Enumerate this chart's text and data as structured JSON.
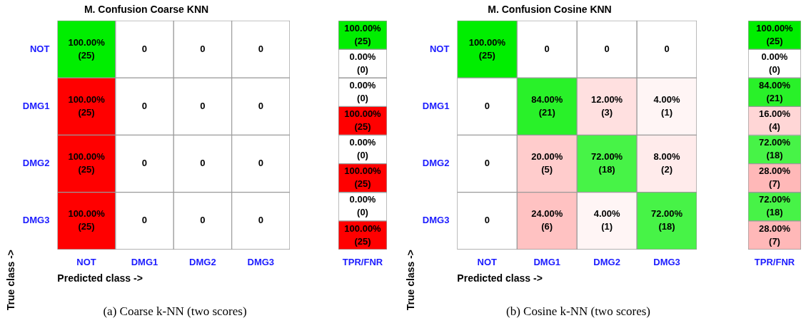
{
  "chart_data": [
    {
      "type": "heatmap",
      "title": "M. Confusion Coarse KNN",
      "xlabel": "Predicted class ->",
      "ylabel": "True class ->",
      "categories": [
        "NOT",
        "DMG1",
        "DMG2",
        "DMG3"
      ],
      "y_categories": [
        "NOT",
        "DMG1",
        "DMG2",
        "DMG3"
      ],
      "cells": [
        [
          100,
          0,
          0,
          0
        ],
        [
          100,
          0,
          0,
          0
        ],
        [
          100,
          0,
          0,
          0
        ],
        [
          100,
          0,
          0,
          0
        ]
      ],
      "cell_labels": [
        [
          "100.00%",
          "0",
          "0",
          "0"
        ],
        [
          "100.00%",
          "0",
          "0",
          "0"
        ],
        [
          "100.00%",
          "0",
          "0",
          "0"
        ],
        [
          "100.00%",
          "0",
          "0",
          "0"
        ]
      ],
      "colors": [
        [
          "#00ee00",
          "#ff0000",
          "#ff0000",
          "#ff0000"
        ],
        [
          "#ff0000",
          "#00ee00",
          "#ff0000",
          "#ff0000"
        ],
        [
          "#ff0000",
          "#ff0000",
          "#00ee00",
          "#ff0000"
        ],
        [
          "#ff0000",
          "#ff0000",
          "#ff0000",
          "#00ee00"
        ]
      ],
      "annotations": [
        "(25)",
        "(25)",
        "(25)",
        "(25)",
        "(a) Coarse k-NN (two scores)"
      ]
    },
    {
      "type": "heatmap",
      "categories": [
        "TPR/FNR"
      ],
      "y_categories": [
        null,
        null,
        null,
        null,
        null,
        null,
        null,
        null
      ],
      "cells": [
        [
          100
        ],
        [
          0
        ],
        [
          0
        ],
        [
          100
        ],
        [
          0
        ],
        [
          100
        ],
        [
          0
        ],
        [
          100
        ]
      ],
      "cell_labels": [
        [
          "100.00%"
        ],
        [
          "0.00%"
        ],
        [
          "0.00%"
        ],
        [
          "100.00%"
        ],
        [
          "0.00%"
        ],
        [
          "100.00%"
        ],
        [
          "0.00%"
        ],
        [
          "100.00%"
        ]
      ],
      "colors": [
        [
          "#00ee00"
        ],
        [
          "#ff0000"
        ],
        [
          "#00ee00"
        ],
        [
          "#ff0000"
        ],
        [
          "#00ee00"
        ],
        [
          "#ff0000"
        ],
        [
          "#00ee00"
        ],
        [
          "#ff0000"
        ]
      ],
      "annotations": [
        "(25)",
        "(0)",
        "(0)",
        "(25)",
        "(0)",
        "(25)",
        "(0)",
        "(25)"
      ],
      "tick_labels": "x"
    },
    {
      "type": "heatmap",
      "title": "M. Confusion Cosine KNN",
      "xlabel": "Predicted class ->",
      "ylabel": "True class ->",
      "categories": [
        "NOT",
        "DMG1",
        "DMG2",
        "DMG3"
      ],
      "y_categories": [
        "NOT",
        "DMG1",
        "DMG2",
        "DMG3"
      ],
      "cells": [
        [
          100,
          0,
          0,
          0
        ],
        [
          0,
          84,
          12,
          4
        ],
        [
          0,
          20,
          72,
          8
        ],
        [
          0,
          24,
          4,
          72
        ]
      ],
      "cell_labels": [
        [
          "100.00%",
          "0",
          "0",
          "0"
        ],
        [
          "0",
          "84.00%",
          "12.00%",
          "4.00%"
        ],
        [
          "0",
          "20.00%",
          "72.00%",
          "8.00%"
        ],
        [
          "0",
          "24.00%",
          "4.00%",
          "72.00%"
        ]
      ],
      "colors": [
        [
          "#00ee00",
          "#ff0000",
          "#ff0000",
          "#ff0000"
        ],
        [
          "#ff0000",
          "#00ee00",
          "#ff0000",
          "#ff0000"
        ],
        [
          "#ff0000",
          "#ff0000",
          "#00ee00",
          "#ff0000"
        ],
        [
          "#ff0000",
          "#ff0000",
          "#ff0000",
          "#00ee00"
        ]
      ],
      "annotations": [
        "(25)",
        "(21)",
        "(3)",
        "(1)",
        "(5)",
        "(18)",
        "(2)",
        "(6)",
        "(1)",
        "(18)",
        "(b) Cosine k-NN (two scores)"
      ]
    },
    {
      "type": "heatmap",
      "categories": [
        "TPR/FNR"
      ],
      "y_categories": [
        null,
        null,
        null,
        null,
        null,
        null,
        null,
        null
      ],
      "cells": [
        [
          100
        ],
        [
          0
        ],
        [
          84
        ],
        [
          16
        ],
        [
          72
        ],
        [
          28
        ],
        [
          72
        ],
        [
          28
        ]
      ],
      "cell_labels": [
        [
          "100.00%"
        ],
        [
          "0.00%"
        ],
        [
          "84.00%"
        ],
        [
          "16.00%"
        ],
        [
          "72.00%"
        ],
        [
          "28.00%"
        ],
        [
          "72.00%"
        ],
        [
          "28.00%"
        ]
      ],
      "colors": [
        [
          "#00ee00"
        ],
        [
          "#ff0000"
        ],
        [
          "#00ee00"
        ],
        [
          "#ff0000"
        ],
        [
          "#00ee00"
        ],
        [
          "#ff0000"
        ],
        [
          "#00ee00"
        ],
        [
          "#ff0000"
        ]
      ],
      "annotations": [
        "(25)",
        "(0)",
        "(21)",
        "(4)",
        "(18)",
        "(7)",
        "(18)",
        "(7)"
      ],
      "tick_labels": "x"
    }
  ]
}
